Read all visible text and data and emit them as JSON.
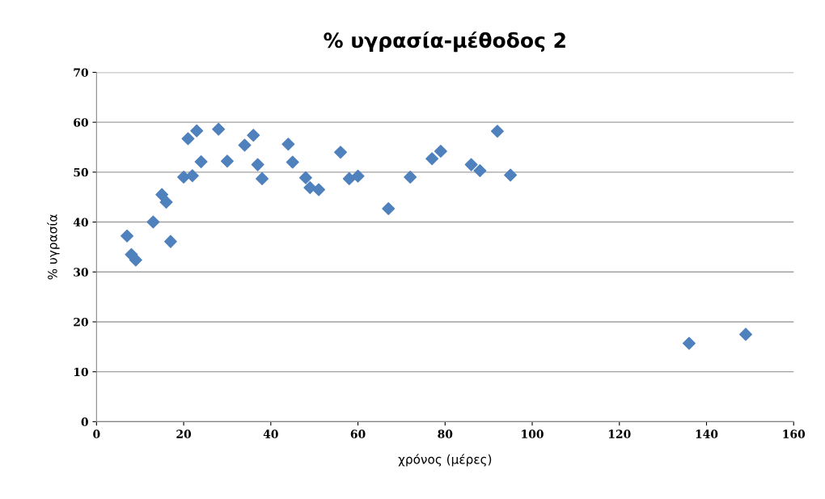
{
  "chart_data": {
    "type": "scatter",
    "title": "% υγρασία-μέθοδος 2",
    "xlabel": "χρόνος (μέρες)",
    "ylabel": "% υγρασία",
    "x": [
      7,
      8,
      9,
      13,
      15,
      16,
      17,
      20,
      21,
      22,
      23,
      24,
      28,
      30,
      34,
      36,
      37,
      38,
      44,
      45,
      48,
      49,
      51,
      56,
      58,
      60,
      67,
      72,
      77,
      79,
      86,
      88,
      92,
      95,
      136,
      149
    ],
    "series": [
      {
        "color": "#4f81bd",
        "values": [
          37.2,
          33.5,
          32.4,
          40,
          45.5,
          44,
          36.1,
          49,
          56.7,
          49.3,
          58.3,
          52.1,
          58.6,
          52.2,
          55.4,
          57.4,
          51.5,
          48.7,
          55.6,
          52,
          48.9,
          46.9,
          46.5,
          54,
          48.7,
          49.2,
          42.7,
          49,
          52.7,
          54.2,
          51.5,
          50.3,
          58.2,
          49.4,
          15.7,
          17.5
        ]
      }
    ],
    "xlim": [
      0,
      160
    ],
    "xticks": [
      0,
      20,
      40,
      60,
      80,
      100,
      120,
      140,
      160
    ],
    "ylim": [
      0,
      70
    ],
    "yticks": [
      0,
      10,
      20,
      30,
      40,
      50,
      60,
      70
    ],
    "grid": "y",
    "marker": "diamond",
    "legend": false
  }
}
